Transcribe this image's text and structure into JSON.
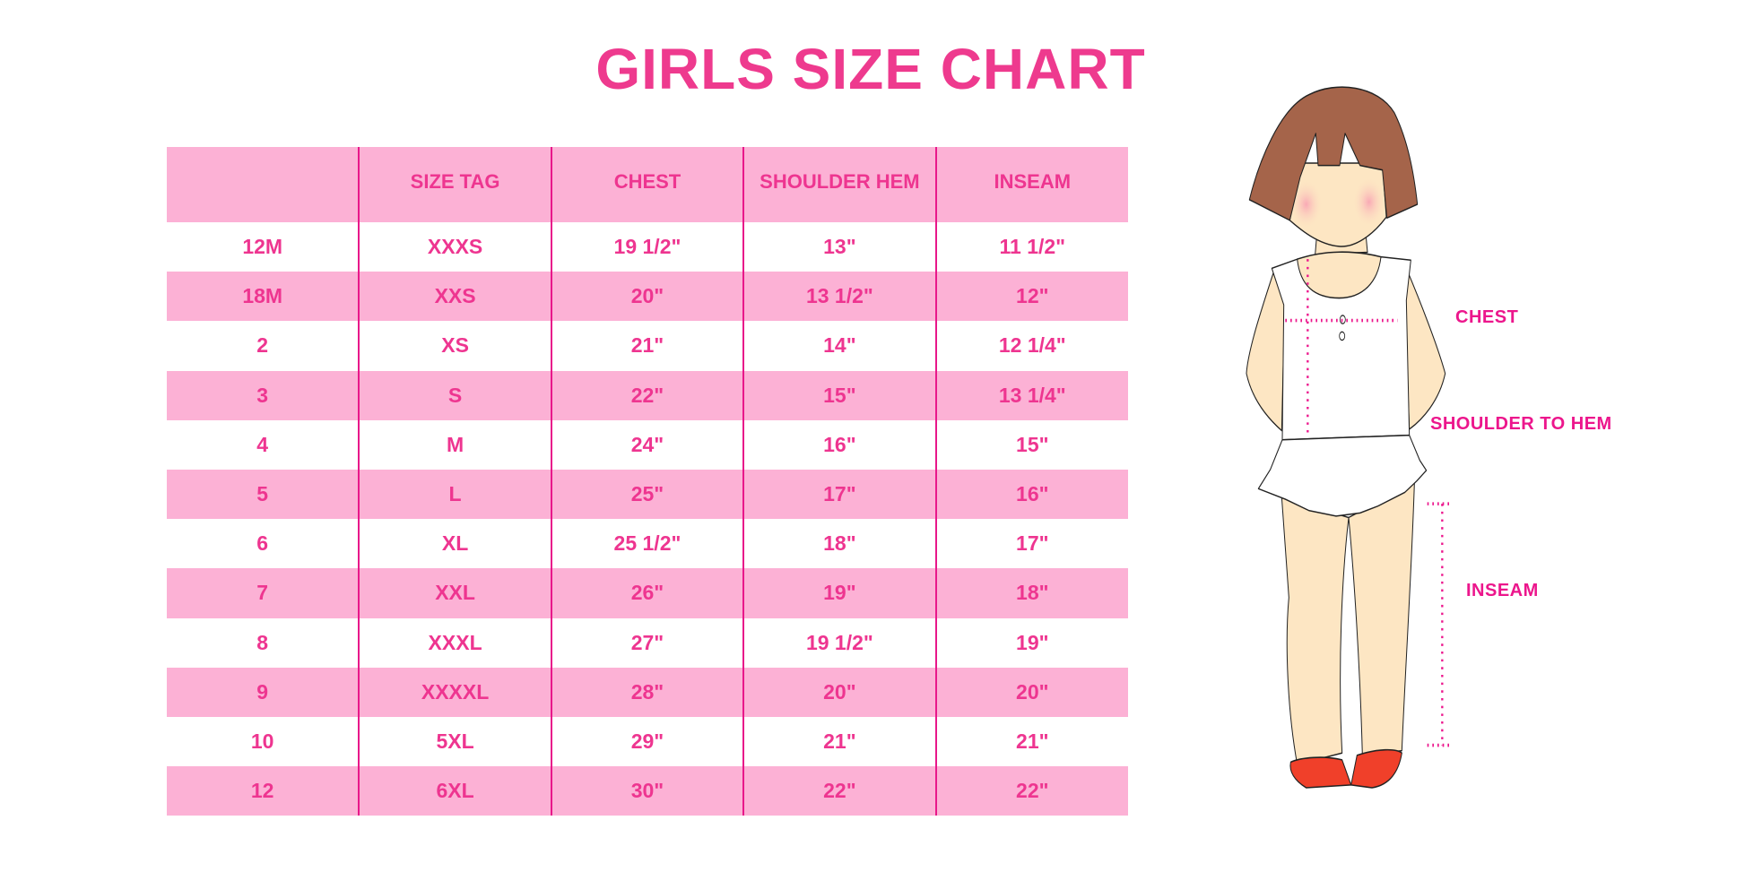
{
  "title": "GIRLS SIZE CHART",
  "table": {
    "headers": [
      "",
      "SIZE TAG",
      "CHEST",
      "SHOULDER HEM",
      "INSEAM"
    ],
    "rows": [
      [
        "12M",
        "XXXS",
        "19 1/2\"",
        "13\"",
        "11 1/2\""
      ],
      [
        "18M",
        "XXS",
        "20\"",
        "13 1/2\"",
        "12\""
      ],
      [
        "2",
        "XS",
        "21\"",
        "14\"",
        "12 1/4\""
      ],
      [
        "3",
        "S",
        "22\"",
        "15\"",
        "13 1/4\""
      ],
      [
        "4",
        "M",
        "24\"",
        "16\"",
        "15\""
      ],
      [
        "5",
        "L",
        "25\"",
        "17\"",
        "16\""
      ],
      [
        "6",
        "XL",
        "25 1/2\"",
        "18\"",
        "17\""
      ],
      [
        "7",
        "XXL",
        "26\"",
        "19\"",
        "18\""
      ],
      [
        "8",
        "XXXL",
        "27\"",
        "19 1/2\"",
        "19\""
      ],
      [
        "9",
        "XXXXL",
        "28\"",
        "20\"",
        "20\""
      ],
      [
        "10",
        "5XL",
        "29\"",
        "21\"",
        "21\""
      ],
      [
        "12",
        "6XL",
        "30\"",
        "22\"",
        "22\""
      ]
    ]
  },
  "figure": {
    "labels": {
      "chest": "CHEST",
      "shoulder_to_hem": "SHOULDER TO HEM",
      "inseam": "INSEAM"
    }
  },
  "colors": {
    "accent": "#ee3a8e",
    "header_bg": "#fcb1d5",
    "divider": "#e8178a",
    "hair": "#a5644a",
    "skin": "#fde6c3",
    "shoe": "#f0402a"
  }
}
